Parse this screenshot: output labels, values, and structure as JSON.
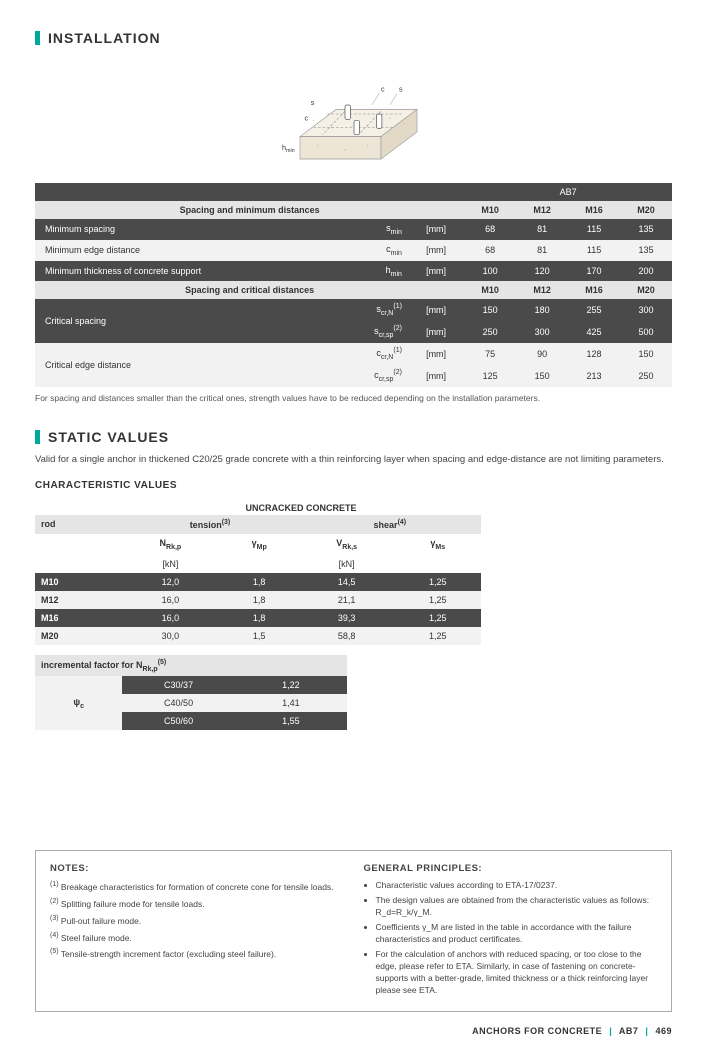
{
  "headings": {
    "installation": "INSTALLATION",
    "static_values": "STATIC VALUES",
    "char_values": "CHARACTERISTIC VALUES",
    "uncracked": "UNCRACKED CONCRETE",
    "notes": "NOTES:",
    "general": "GENERAL PRINCIPLES:"
  },
  "diagram_labels": {
    "c": "c",
    "s": "s",
    "hmin": "h"
  },
  "colors": {
    "accent": "#00a99d",
    "header_bg": "#e5e5e5",
    "dark_row": "#4a4a4a",
    "light_row": "#f2f2f2"
  },
  "install_table": {
    "product_header": "AB7",
    "section1": "Spacing and minimum distances",
    "section2": "Spacing and critical distances",
    "sizes": [
      "M10",
      "M12",
      "M16",
      "M20"
    ],
    "rows": [
      {
        "label": "Minimum spacing",
        "symbol": "s_min",
        "unit": "[mm]",
        "vals": [
          "68",
          "81",
          "115",
          "135"
        ],
        "style": "dark"
      },
      {
        "label": "Minimum edge distance",
        "symbol": "c_min",
        "unit": "[mm]",
        "vals": [
          "68",
          "81",
          "115",
          "135"
        ],
        "style": "light"
      },
      {
        "label": "Minimum thickness of concrete support",
        "symbol": "h_min",
        "unit": "[mm]",
        "vals": [
          "100",
          "120",
          "170",
          "200"
        ],
        "style": "dark"
      }
    ],
    "crit_rows": [
      {
        "label": "Critical spacing",
        "span": 2,
        "lines": [
          {
            "symbol": "s_cr,N",
            "sup": "(1)",
            "unit": "[mm]",
            "vals": [
              "150",
              "180",
              "255",
              "300"
            ],
            "style": "dark"
          },
          {
            "symbol": "s_cr,sp",
            "sup": "(2)",
            "unit": "[mm]",
            "vals": [
              "250",
              "300",
              "425",
              "500"
            ],
            "style": "dark"
          }
        ]
      },
      {
        "label": "Critical edge distance",
        "span": 2,
        "lines": [
          {
            "symbol": "c_cr,N",
            "sup": "(1)",
            "unit": "[mm]",
            "vals": [
              "75",
              "90",
              "128",
              "150"
            ],
            "style": "light"
          },
          {
            "symbol": "c_cr,sp",
            "sup": "(2)",
            "unit": "[mm]",
            "vals": [
              "125",
              "150",
              "213",
              "250"
            ],
            "style": "light"
          }
        ]
      }
    ],
    "footnote": "For spacing and distances smaller than the critical ones, strength values have to be reduced depending on the installation parameters."
  },
  "static_intro": "Valid for a single anchor in thickened C20/25 grade concrete with a thin reinforcing layer when spacing and edge-distance are not limiting parameters.",
  "char_table": {
    "col_rod": "rod",
    "col_tension": "tension",
    "col_shear": "shear",
    "tension_sup": "(3)",
    "shear_sup": "(4)",
    "sym_nrk": "N_Rk,p",
    "sym_gmp": "γ_Mp",
    "sym_vrk": "V_Rk,s",
    "sym_gms": "γ_Ms",
    "unit_kn": "[kN]",
    "rows": [
      {
        "rod": "M10",
        "vals": [
          "12,0",
          "1,8",
          "14,5",
          "1,25"
        ],
        "style": "dark"
      },
      {
        "rod": "M12",
        "vals": [
          "16,0",
          "1,8",
          "21,1",
          "1,25"
        ],
        "style": "light"
      },
      {
        "rod": "M16",
        "vals": [
          "16,0",
          "1,8",
          "39,3",
          "1,25"
        ],
        "style": "dark"
      },
      {
        "rod": "M20",
        "vals": [
          "30,0",
          "1,5",
          "58,8",
          "1,25"
        ],
        "style": "light"
      }
    ]
  },
  "incfac": {
    "title": "incremental factor for N_Rk,p",
    "title_sup": "(5)",
    "symbol": "ψ_c",
    "rows": [
      {
        "grade": "C30/37",
        "val": "1,22",
        "style": "dark"
      },
      {
        "grade": "C40/50",
        "val": "1,41",
        "style": "light"
      },
      {
        "grade": "C50/60",
        "val": "1,55",
        "style": "dark"
      }
    ]
  },
  "notes": [
    "Breakage characteristics for formation of concrete cone for tensile loads.",
    "Splitting failure mode for tensile loads.",
    "Pull-out failure mode.",
    "Steel failure mode.",
    "Tensile-strength increment factor (excluding steel failure)."
  ],
  "general": [
    "Characteristic values according to ETA-17/0237.",
    "The design values are obtained from the characteristic values as follows: R_d=R_k/γ_M.",
    "Coefficients γ_M are listed in the table in accordance with the failure characteristics and product certificates.",
    "For the calculation of anchors with reduced spacing, or too close to the edge, please refer to ETA. Similarly, in case of fastening on concrete-supports with a better-grade, limited thickness or a thick reinforcing layer please see ETA."
  ],
  "footer": {
    "category": "ANCHORS FOR CONCRETE",
    "product": "AB7",
    "page": "469"
  }
}
